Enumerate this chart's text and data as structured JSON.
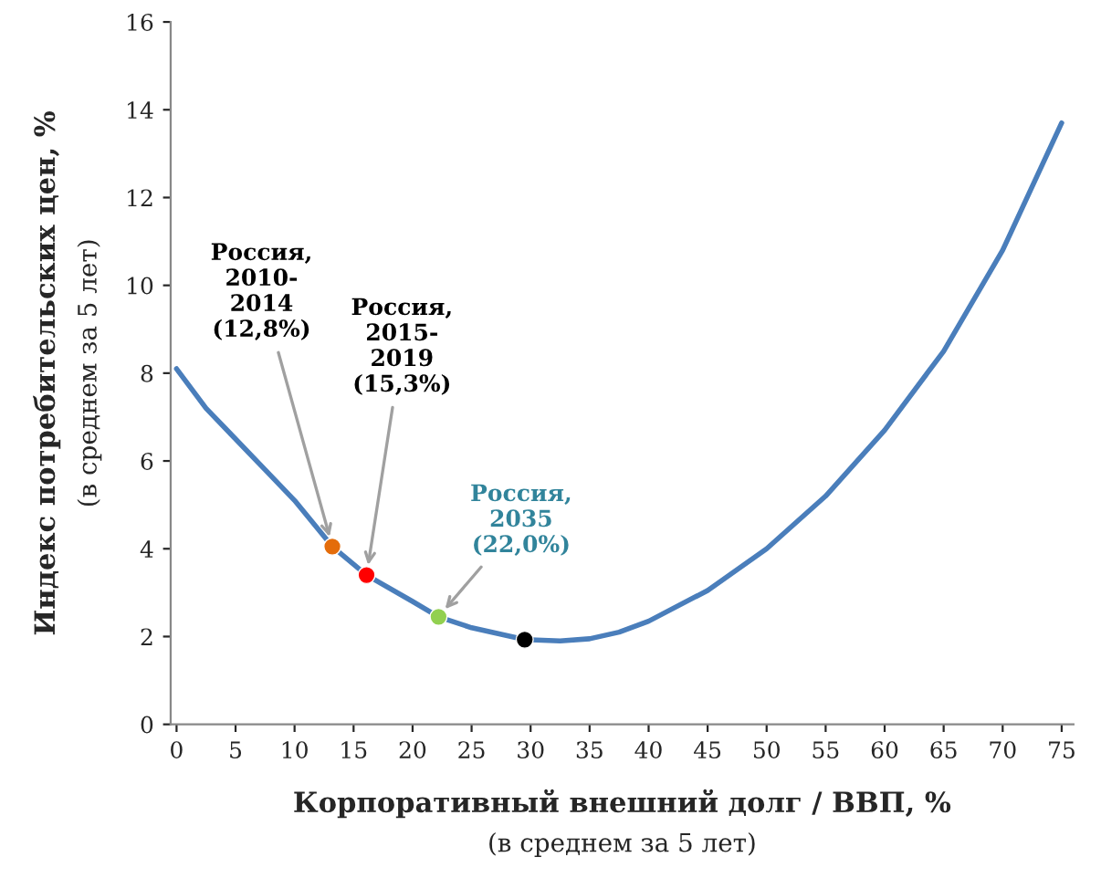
{
  "chart_data": {
    "type": "line",
    "xlabel": "Корпоративный внешний долг / ВВП, %\n(в среднем за 5 лет)",
    "ylabel": "Индекс потребительских цен, %\n(в среднем за 5 лет)",
    "xlim": [
      -0.5,
      76
    ],
    "xticks": [
      0,
      5,
      10,
      15,
      20,
      25,
      30,
      35,
      40,
      45,
      50,
      55,
      60,
      65,
      70,
      75
    ],
    "ylim": [
      0,
      16
    ],
    "yticks": [
      0,
      2,
      4,
      6,
      8,
      10,
      12,
      14,
      16
    ],
    "grid": false,
    "series": [
      {
        "color": "#4a7ebb",
        "x": [
          0,
          2.5,
          5,
          7.5,
          10,
          13.2,
          16.1,
          20,
          22.2,
          25,
          29.5,
          32.5,
          35,
          37.5,
          40,
          45,
          50,
          55,
          60,
          65,
          70,
          75
        ],
        "values": [
          8.1,
          7.2,
          6.5,
          5.8,
          5.1,
          4.05,
          3.4,
          2.8,
          2.45,
          2.2,
          1.93,
          1.9,
          1.95,
          2.1,
          2.35,
          3.05,
          4.0,
          5.2,
          6.7,
          8.5,
          10.8,
          13.7
        ]
      },
      {
        "type": "scatter",
        "color": "#e46c0a",
        "x": [
          13.2
        ],
        "values": [
          4.05
        ]
      },
      {
        "type": "scatter",
        "color": "#ff0000",
        "x": [
          16.1
        ],
        "values": [
          3.4
        ]
      },
      {
        "type": "scatter",
        "color": "#92d050",
        "x": [
          22.2
        ],
        "values": [
          2.45
        ]
      },
      {
        "type": "scatter",
        "color": "#000000",
        "x": [
          29.5
        ],
        "values": [
          1.93
        ]
      }
    ],
    "annotations": [
      {
        "text": "Россия,\n2010-\n2014\n(12,8%)",
        "x": 13.2,
        "y": 4.05
      },
      {
        "text": "Россия,\n2015-\n2019\n(15,3%)",
        "x": 16.1,
        "y": 3.4
      },
      {
        "text": "Россия,\n2035\n(22,0%)",
        "x": 22.2,
        "y": 2.45
      }
    ]
  }
}
